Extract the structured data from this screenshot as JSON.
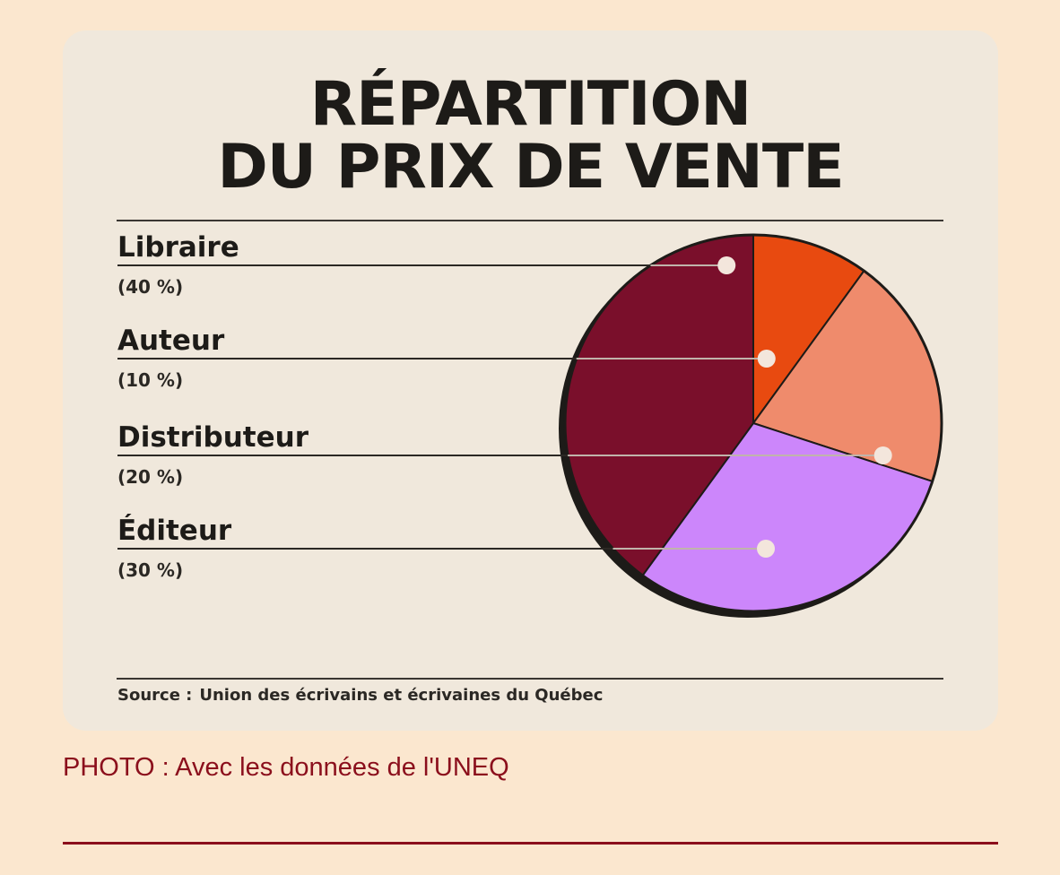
{
  "chart_data": {
    "type": "pie",
    "title": "RÉPARTITION",
    "subtitle": "DU PRIX DE VENTE",
    "slices": [
      {
        "label": "Auteur",
        "percent_label": "(10 %)",
        "value": 10,
        "color": "#e84a10"
      },
      {
        "label": "Distributeur",
        "percent_label": "(20 %)",
        "value": 20,
        "color": "#ef8b6c"
      },
      {
        "label": "Éditeur",
        "percent_label": "(30 %)",
        "value": 30,
        "color": "#cc86fb"
      },
      {
        "label": "Libraire",
        "percent_label": "(40 %)",
        "value": 40,
        "color": "#7a0f2b"
      }
    ],
    "legend_order": [
      "Libraire",
      "Auteur",
      "Distributeur",
      "Éditeur"
    ],
    "legend_placement": "left",
    "start_angle_deg": 0,
    "direction": "clockwise",
    "source_label": "Source :",
    "source_text": "Union des écrivains et écrivaines du Québec"
  },
  "caption": "PHOTO : Avec les données de l'UNEQ",
  "colors": {
    "page_background": "#fbe7cf",
    "card_background": "#f0e8dc",
    "caption_color": "#8b0f1c",
    "text_dark": "#1d1b18",
    "marker_dot": "#f3e6dc"
  }
}
